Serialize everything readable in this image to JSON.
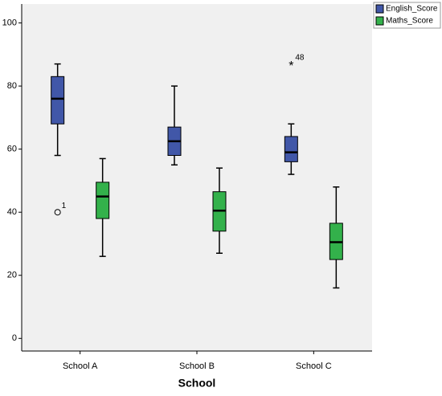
{
  "chart_data": {
    "type": "boxplot",
    "x_label": "School",
    "categories": [
      "School A",
      "School B",
      "School C"
    ],
    "ylim": [
      -4,
      106
    ],
    "yticks": [
      0,
      20,
      40,
      60,
      80,
      100
    ],
    "legend": "top-right",
    "series": [
      {
        "name": "English_Score",
        "color": "#4157a8",
        "min": [
          58,
          55,
          52
        ],
        "q1": [
          68,
          58,
          56
        ],
        "median": [
          76,
          62.5,
          59
        ],
        "q3": [
          83,
          67,
          64
        ],
        "max": [
          87,
          80,
          68
        ],
        "outliers": [
          [
            {
              "value": 40,
              "label": "1",
              "marker": "circle"
            }
          ],
          [],
          [
            {
              "value": 87,
              "label": "48",
              "marker": "star"
            }
          ]
        ]
      },
      {
        "name": "Maths_Score",
        "color": "#33b14b",
        "min": [
          26,
          27,
          16
        ],
        "q1": [
          38,
          34,
          25
        ],
        "median": [
          45,
          40.5,
          30.5
        ],
        "q3": [
          49.5,
          46.5,
          36.5
        ],
        "max": [
          57,
          54,
          48
        ],
        "outliers": [
          [],
          [],
          []
        ]
      }
    ]
  }
}
